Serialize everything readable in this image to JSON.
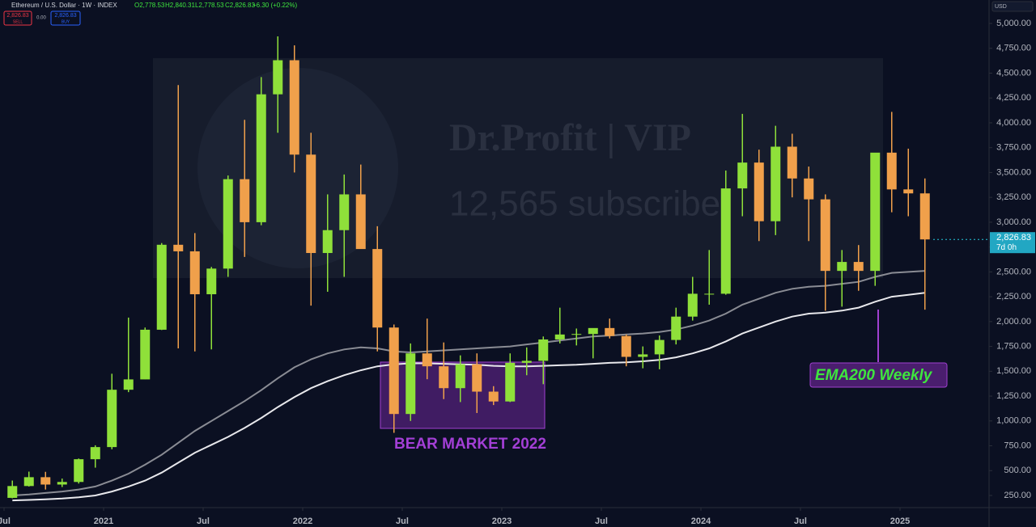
{
  "chart_data": {
    "type": "candlestick",
    "header": {
      "symbol": "Ethereum / U.S. Dollar · 1W · INDEX",
      "open": "O2,778.53",
      "high": "H2,840.31",
      "low": "L2,778.53",
      "close": "C2,826.83",
      "change": "+6.30 (+0.22%)",
      "sell_price": "2,826.83",
      "sell": "SELL",
      "spread": "0.00",
      "buy_price": "2,826.83",
      "buy": "BUY",
      "currency": "USD"
    },
    "watermark": {
      "title": "Dr.Profit | VIP",
      "subtitle": "12,565 subscribe"
    },
    "annotations": {
      "bear_market": "BEAR MARKET 2022",
      "ema": "EMA200 Weekly"
    },
    "x": [
      "2020-07",
      "2020-08",
      "2020-09",
      "2020-10",
      "2020-11",
      "2020-12",
      "2021-01",
      "2021-02",
      "2021-03",
      "2021-04",
      "2021-05",
      "2021-06",
      "2021-07",
      "2021-08",
      "2021-09",
      "2021-10",
      "2021-11",
      "2021-12",
      "2022-01",
      "2022-02",
      "2022-03",
      "2022-04",
      "2022-05",
      "2022-06",
      "2022-07",
      "2022-08",
      "2022-09",
      "2022-10",
      "2022-11",
      "2022-12",
      "2023-01",
      "2023-02",
      "2023-03",
      "2023-04",
      "2023-05",
      "2023-06",
      "2023-07",
      "2023-08",
      "2023-09",
      "2023-10",
      "2023-11",
      "2023-12",
      "2024-01",
      "2024-02",
      "2024-03",
      "2024-04",
      "2024-05",
      "2024-06",
      "2024-07",
      "2024-08",
      "2024-09",
      "2024-10",
      "2024-11",
      "2024-12",
      "2025-01",
      "2025-02"
    ],
    "open": [
      226,
      345,
      434,
      360,
      386,
      615,
      737,
      1314,
      1418,
      1918,
      2773,
      2707,
      2275,
      2533,
      3433,
      3000,
      4287,
      4630,
      3680,
      2690,
      2920,
      3280,
      2730,
      1940,
      1070,
      1680,
      1550,
      1330,
      1570,
      1295,
      1196,
      1585,
      1605,
      1820,
      1870,
      1875,
      1935,
      1855,
      1645,
      1670,
      1815,
      2050,
      2280,
      2280,
      3340,
      3600,
      3010,
      3760,
      3440,
      3230,
      2510,
      2600,
      2510,
      3700,
      3330,
      3290
    ],
    "high": [
      400,
      490,
      488,
      420,
      622,
      755,
      1475,
      2040,
      1940,
      2790,
      4380,
      2890,
      2550,
      3470,
      4030,
      4460,
      4870,
      4780,
      3900,
      3280,
      3480,
      3580,
      2960,
      1970,
      1780,
      2030,
      1790,
      1660,
      1680,
      1350,
      1680,
      1740,
      1850,
      2140,
      1930,
      1930,
      2030,
      1870,
      1750,
      1860,
      2140,
      2450,
      2720,
      3520,
      4090,
      3730,
      3970,
      3890,
      3560,
      3280,
      2720,
      2770,
      3680,
      4110,
      3740,
      3440
    ],
    "low": [
      222,
      340,
      310,
      335,
      370,
      530,
      715,
      1290,
      1420,
      1915,
      1730,
      1700,
      1720,
      2450,
      2650,
      2970,
      3900,
      3500,
      2160,
      2300,
      2450,
      2780,
      1700,
      880,
      1000,
      1420,
      1220,
      1190,
      1080,
      1160,
      1190,
      1460,
      1370,
      1780,
      1760,
      1630,
      1830,
      1550,
      1530,
      1520,
      1770,
      2010,
      2170,
      2270,
      3060,
      2810,
      2870,
      3250,
      2810,
      2110,
      2150,
      2310,
      2360,
      3100,
      3060,
      2120
    ],
    "close": [
      345,
      434,
      360,
      386,
      615,
      737,
      1314,
      1418,
      1918,
      2773,
      2707,
      2275,
      2533,
      3433,
      3000,
      4287,
      4630,
      3680,
      2690,
      2920,
      3280,
      2730,
      1940,
      1070,
      1680,
      1550,
      1330,
      1570,
      1295,
      1196,
      1585,
      1605,
      1820,
      1870,
      1875,
      1935,
      1855,
      1645,
      1670,
      1815,
      2050,
      2280,
      2280,
      3340,
      3600,
      3010,
      3760,
      3440,
      3230,
      2510,
      2600,
      2510,
      3700,
      3330,
      3290,
      2826.83
    ],
    "up_color": "#8fe03a",
    "down_color": "#f0a04b",
    "lines": [
      {
        "color": "#e8e8ec",
        "values": [
          200,
          205,
          212,
          220,
          232,
          250,
          290,
          340,
          400,
          480,
          580,
          680,
          760,
          840,
          930,
          1030,
          1140,
          1240,
          1330,
          1400,
          1460,
          1510,
          1550,
          1570,
          1580,
          1580,
          1575,
          1570,
          1565,
          1555,
          1550,
          1550,
          1555,
          1560,
          1565,
          1575,
          1585,
          1590,
          1600,
          1615,
          1640,
          1680,
          1730,
          1800,
          1880,
          1940,
          2000,
          2050,
          2080,
          2090,
          2110,
          2140,
          2200,
          2250,
          2270,
          2290
        ]
      },
      {
        "color": "#8a8c94",
        "values": [
          250,
          260,
          275,
          290,
          310,
          340,
          400,
          470,
          560,
          660,
          780,
          900,
          1000,
          1100,
          1200,
          1310,
          1430,
          1540,
          1620,
          1680,
          1720,
          1740,
          1730,
          1700,
          1690,
          1700,
          1710,
          1720,
          1730,
          1740,
          1750,
          1770,
          1790,
          1810,
          1830,
          1850,
          1860,
          1870,
          1880,
          1895,
          1920,
          1960,
          2010,
          2080,
          2170,
          2230,
          2290,
          2330,
          2350,
          2360,
          2380,
          2400,
          2450,
          2490,
          2500,
          2510
        ]
      }
    ],
    "last_price": 2826.83,
    "last_price_label": "2,826.83",
    "countdown": "7d 0h",
    "ylim": [
      128,
      5236
    ],
    "yticks": [
      {
        "value": 5000,
        "label": "5,000.00"
      },
      {
        "value": 4750,
        "label": "4,750.00"
      },
      {
        "value": 4500,
        "label": "4,500.00"
      },
      {
        "value": 4250,
        "label": "4,250.00"
      },
      {
        "value": 4000,
        "label": "4,000.00"
      },
      {
        "value": 3750,
        "label": "3,750.00"
      },
      {
        "value": 3500,
        "label": "3,500.00"
      },
      {
        "value": 3250,
        "label": "3,250.00"
      },
      {
        "value": 3000,
        "label": "3,000.00"
      },
      {
        "value": 2750,
        "label": "2,750.00"
      },
      {
        "value": 2500,
        "label": "2,500.00"
      },
      {
        "value": 2250,
        "label": "2,250.00"
      },
      {
        "value": 2000,
        "label": "2,000.00"
      },
      {
        "value": 1750,
        "label": "1,750.00"
      },
      {
        "value": 1500,
        "label": "1,500.00"
      },
      {
        "value": 1250,
        "label": "1,250.00"
      },
      {
        "value": 1000,
        "label": "1,000.00"
      },
      {
        "value": 750,
        "label": "750.00"
      },
      {
        "value": 500,
        "label": "500.00"
      },
      {
        "value": 250,
        "label": "250.00"
      }
    ],
    "xticks": [
      {
        "value": "2020-07",
        "label": "Jul"
      },
      {
        "value": "2021-01",
        "label": "2021"
      },
      {
        "value": "2021-07",
        "label": "Jul"
      },
      {
        "value": "2022-01",
        "label": "2022"
      },
      {
        "value": "2022-07",
        "label": "Jul"
      },
      {
        "value": "2023-01",
        "label": "2023"
      },
      {
        "value": "2023-07",
        "label": "Jul"
      },
      {
        "value": "2024-01",
        "label": "2024"
      },
      {
        "value": "2024-07",
        "label": "Jul"
      },
      {
        "value": "2025-01",
        "label": "2025"
      }
    ]
  }
}
